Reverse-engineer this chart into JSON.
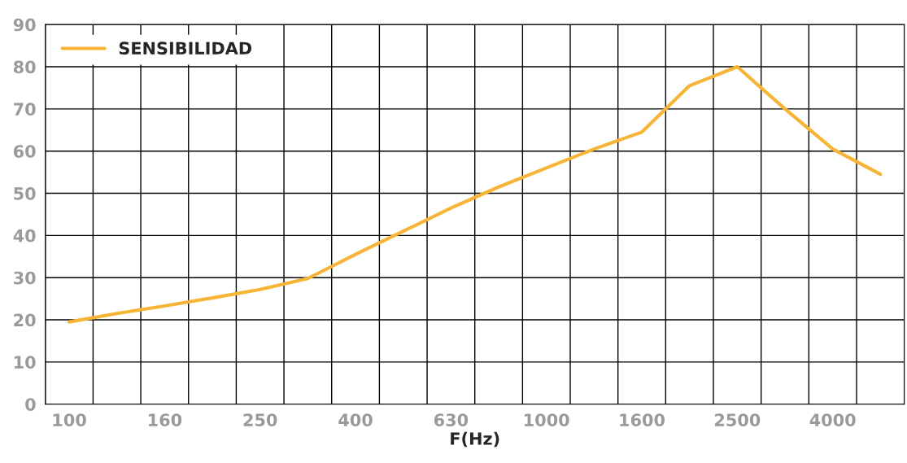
{
  "chart_data": {
    "type": "line",
    "xlabel": "F(Hz)",
    "categories": [
      "100",
      null,
      "160",
      null,
      "250",
      null,
      "400",
      null,
      "630",
      null,
      "1000",
      null,
      "1600",
      null,
      "2500",
      null,
      "4000",
      null
    ],
    "series": [
      {
        "name": "SENSIBILIDAD",
        "color": "#f7b538",
        "values": [
          19.5,
          21.5,
          23.3,
          25.2,
          27.2,
          29.8,
          35.5,
          41,
          46.5,
          51.5,
          56,
          60.5,
          64.5,
          75.5,
          80,
          70,
          60.5,
          54.5
        ]
      }
    ],
    "ylim": [
      0,
      90
    ],
    "yticks": [
      0,
      10,
      20,
      30,
      40,
      50,
      60,
      70,
      80,
      90
    ],
    "grid": true,
    "legend": "top left",
    "marker": "none",
    "line_style": "solid"
  }
}
